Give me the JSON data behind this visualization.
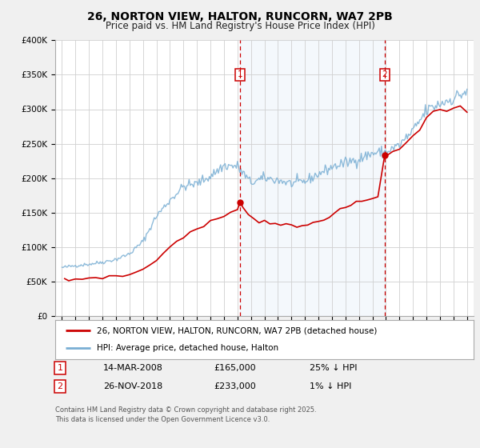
{
  "title": "26, NORTON VIEW, HALTON, RUNCORN, WA7 2PB",
  "subtitle": "Price paid vs. HM Land Registry's House Price Index (HPI)",
  "legend_entry1": "26, NORTON VIEW, HALTON, RUNCORN, WA7 2PB (detached house)",
  "legend_entry2": "HPI: Average price, detached house, Halton",
  "footnote": "Contains HM Land Registry data © Crown copyright and database right 2025.\nThis data is licensed under the Open Government Licence v3.0.",
  "marker1_date": "14-MAR-2008",
  "marker1_price": "£165,000",
  "marker1_hpi": "25% ↓ HPI",
  "marker2_date": "26-NOV-2018",
  "marker2_price": "£233,000",
  "marker2_hpi": "1% ↓ HPI",
  "line1_color": "#cc0000",
  "line2_color": "#7aafd4",
  "marker1_x": 2008.2,
  "marker2_x": 2018.9,
  "marker1_y": 165000,
  "marker2_y": 233000,
  "vline1_x": 2008.2,
  "vline2_x": 2018.9,
  "ylim": [
    0,
    400000
  ],
  "xlim": [
    1994.5,
    2025.5
  ],
  "yticks": [
    0,
    50000,
    100000,
    150000,
    200000,
    250000,
    300000,
    350000,
    400000
  ],
  "ytick_labels": [
    "£0",
    "£50K",
    "£100K",
    "£150K",
    "£200K",
    "£250K",
    "£300K",
    "£350K",
    "£400K"
  ],
  "xticks": [
    1995,
    1996,
    1997,
    1998,
    1999,
    2000,
    2001,
    2002,
    2003,
    2004,
    2005,
    2006,
    2007,
    2008,
    2009,
    2010,
    2011,
    2012,
    2013,
    2014,
    2015,
    2016,
    2017,
    2018,
    2019,
    2020,
    2021,
    2022,
    2023,
    2024,
    2025
  ],
  "background_color": "#f0f0f0",
  "plot_background": "#ffffff",
  "shaded_region": [
    2008.2,
    2018.9
  ],
  "hpi_key_points": {
    "1995": 70000,
    "1996": 73000,
    "1997": 75000,
    "1998": 78000,
    "1999": 82000,
    "2000": 90000,
    "2001": 108000,
    "2002": 145000,
    "2003": 168000,
    "2004": 188000,
    "2005": 192000,
    "2006": 203000,
    "2007": 218000,
    "2008": 217000,
    "2009": 193000,
    "2010": 200000,
    "2011": 197000,
    "2012": 192000,
    "2013": 195000,
    "2014": 206000,
    "2015": 216000,
    "2016": 222000,
    "2017": 228000,
    "2018": 236000,
    "2019": 238000,
    "2020": 248000,
    "2021": 268000,
    "2022": 298000,
    "2023": 308000,
    "2024": 316000,
    "2025": 326000
  },
  "pp_x": [
    1995.2,
    1995.5,
    1995.8,
    1996.0,
    1996.5,
    1997.0,
    1997.5,
    1998.0,
    1998.5,
    1999.0,
    1999.5,
    2000.0,
    2000.5,
    2001.0,
    2001.5,
    2002.0,
    2002.5,
    2003.0,
    2003.5,
    2004.0,
    2004.5,
    2005.0,
    2005.5,
    2006.0,
    2006.5,
    2007.0,
    2007.5,
    2008.0,
    2008.2,
    2008.4,
    2008.8,
    2009.2,
    2009.6,
    2010.0,
    2010.4,
    2010.8,
    2011.2,
    2011.6,
    2012.0,
    2012.4,
    2012.8,
    2013.2,
    2013.6,
    2014.0,
    2014.4,
    2014.8,
    2015.2,
    2015.6,
    2016.0,
    2016.4,
    2016.8,
    2017.2,
    2017.6,
    2018.0,
    2018.4,
    2018.9,
    2019.1,
    2019.5,
    2020.0,
    2020.5,
    2021.0,
    2021.5,
    2022.0,
    2022.5,
    2023.0,
    2023.5,
    2024.0,
    2024.5,
    2025.0
  ],
  "pp_y": [
    52000,
    51500,
    52500,
    53000,
    54000,
    55000,
    55500,
    56000,
    57000,
    57500,
    58000,
    60000,
    63000,
    68000,
    74000,
    82000,
    90000,
    100000,
    108000,
    115000,
    120000,
    126000,
    130000,
    136000,
    141000,
    146000,
    151000,
    157000,
    165000,
    158000,
    148000,
    140000,
    137000,
    138000,
    136000,
    135000,
    133000,
    132000,
    130000,
    129000,
    130000,
    132000,
    135000,
    138000,
    141000,
    145000,
    149000,
    153000,
    157000,
    161000,
    164000,
    166000,
    168000,
    170000,
    173000,
    233000,
    235000,
    238000,
    242000,
    250000,
    262000,
    272000,
    288000,
    295000,
    300000,
    298000,
    303000,
    306000,
    296000
  ]
}
